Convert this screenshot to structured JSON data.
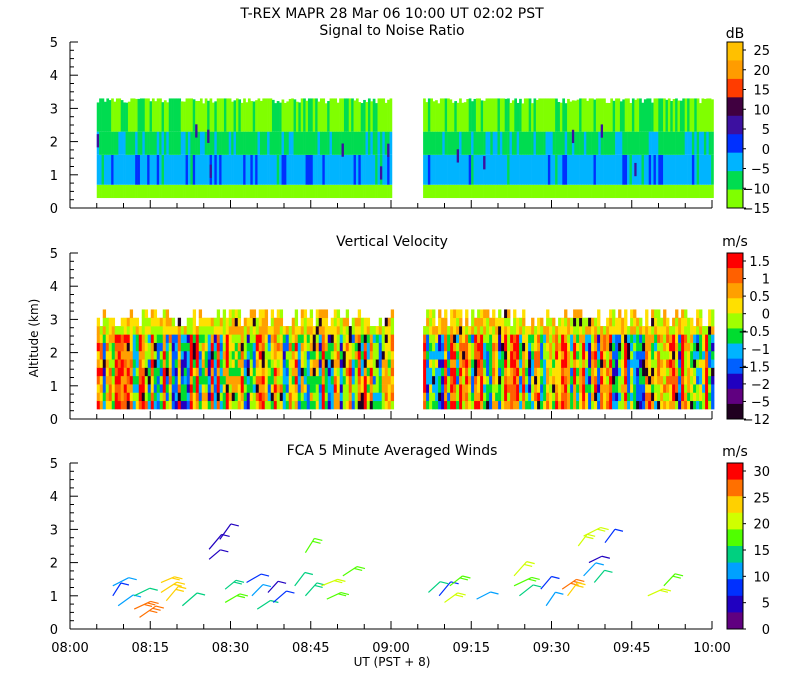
{
  "figure": {
    "title_line1": "T-REX   MAPR 28 Mar 06   10:00 UT   02:02   PST",
    "shared_x": {
      "label": "UT  (PST + 8)",
      "ticks": [
        "08:00",
        "08:15",
        "08:30",
        "08:45",
        "09:00",
        "09:15",
        "09:30",
        "09:45",
        "10:00"
      ],
      "range_minutes_ut": [
        480,
        600
      ]
    },
    "shared_y": {
      "label": "Altitude (km)",
      "range": [
        0,
        5
      ],
      "ticks": [
        "0",
        "1",
        "2",
        "3",
        "4",
        "5"
      ]
    },
    "data_gap_ut": [
      "09:00",
      "09:06"
    ]
  },
  "chart_data": [
    {
      "type": "heatmap",
      "title": "Signal to Noise Ratio",
      "ylabel": "Altitude (km)",
      "ylim": [
        0,
        5
      ],
      "colorbar": {
        "unit": "dB",
        "labels": [
          "25",
          "20",
          "15",
          "10",
          "5",
          "0",
          "−5",
          "−10",
          "−15"
        ],
        "colors": [
          "#ffc000",
          "#ff9c00",
          "#ff3c00",
          "#400040",
          "#3c10a0",
          "#0030ff",
          "#00b4ff",
          "#00dc50",
          "#80ff00"
        ]
      },
      "coverage": {
        "segments_ut": [
          [
            "08:05",
            "09:00"
          ],
          [
            "09:06",
            "10:00"
          ]
        ],
        "altitude_km": [
          0.3,
          3.4
        ]
      },
      "layers": [
        {
          "alt_km": [
            0.3,
            0.7
          ],
          "snr_db": -12
        },
        {
          "alt_km": [
            0.7,
            1.6
          ],
          "snr_db": -5
        },
        {
          "alt_km": [
            1.6,
            2.3
          ],
          "snr_db": -10
        },
        {
          "alt_km": [
            2.3,
            3.3
          ],
          "snr_db": -13
        }
      ]
    },
    {
      "type": "heatmap",
      "title": "Vertical Velocity",
      "ylabel": "Altitude (km)",
      "ylim": [
        0,
        5
      ],
      "colorbar": {
        "unit": "m/s",
        "labels": [
          "1.5",
          "1",
          "0.5",
          "0",
          "−0.5",
          "−1",
          "−1.5",
          "−2",
          "−5",
          "−12"
        ],
        "colors": [
          "#ff0000",
          "#ff6000",
          "#ffa000",
          "#ffe000",
          "#a0ff00",
          "#00dc30",
          "#00b4ff",
          "#0060ff",
          "#2000c0",
          "#600080",
          "#200020"
        ]
      },
      "coverage": {
        "segments_ut": [
          [
            "08:05",
            "09:00"
          ],
          [
            "09:06",
            "10:00"
          ]
        ],
        "altitude_km": [
          0.3,
          3.3
        ]
      }
    },
    {
      "type": "wind_barbs",
      "title": "FCA 5 Minute Averaged Winds",
      "ylabel": "Altitude (km)",
      "ylim": [
        0,
        5
      ],
      "colorbar": {
        "unit": "m/s",
        "labels": [
          "30",
          "25",
          "20",
          "15",
          "10",
          "5",
          "0"
        ],
        "colors": [
          "#ff0000",
          "#ff7000",
          "#ffd000",
          "#d0ff00",
          "#50ff00",
          "#00d080",
          "#00a0ff",
          "#0030ff",
          "#2000c0",
          "#600080"
        ]
      },
      "barbs": [
        {
          "t": "08:08",
          "alt": 1.0,
          "spd": 8
        },
        {
          "t": "08:08",
          "alt": 1.3,
          "spd": 9
        },
        {
          "t": "08:09",
          "alt": 0.7,
          "spd": 10
        },
        {
          "t": "08:12",
          "alt": 1.0,
          "spd": 12
        },
        {
          "t": "08:12",
          "alt": 0.6,
          "spd": 28
        },
        {
          "t": "08:13",
          "alt": 0.35,
          "spd": 27
        },
        {
          "t": "08:17",
          "alt": 1.4,
          "spd": 22
        },
        {
          "t": "08:17",
          "alt": 1.1,
          "spd": 24
        },
        {
          "t": "08:18",
          "alt": 0.85,
          "spd": 23
        },
        {
          "t": "08:21",
          "alt": 0.7,
          "spd": 14
        },
        {
          "t": "08:26",
          "alt": 2.4,
          "spd": 4
        },
        {
          "t": "08:26",
          "alt": 2.1,
          "spd": 3
        },
        {
          "t": "08:28",
          "alt": 2.7,
          "spd": 5
        },
        {
          "t": "08:29",
          "alt": 1.2,
          "spd": 15
        },
        {
          "t": "08:29",
          "alt": 0.8,
          "spd": 16
        },
        {
          "t": "08:33",
          "alt": 1.4,
          "spd": 7
        },
        {
          "t": "08:34",
          "alt": 1.0,
          "spd": 9
        },
        {
          "t": "08:35",
          "alt": 0.6,
          "spd": 13
        },
        {
          "t": "08:37",
          "alt": 1.1,
          "spd": 3
        },
        {
          "t": "08:38",
          "alt": 0.8,
          "spd": 8
        },
        {
          "t": "08:42",
          "alt": 1.3,
          "spd": 14
        },
        {
          "t": "08:44",
          "alt": 2.3,
          "spd": 16
        },
        {
          "t": "08:44",
          "alt": 1.0,
          "spd": 15
        },
        {
          "t": "08:47",
          "alt": 1.3,
          "spd": 20
        },
        {
          "t": "08:48",
          "alt": 0.9,
          "spd": 18
        },
        {
          "t": "08:51",
          "alt": 1.6,
          "spd": 17
        },
        {
          "t": "09:07",
          "alt": 1.1,
          "spd": 12
        },
        {
          "t": "09:09",
          "alt": 1.0,
          "spd": 6
        },
        {
          "t": "09:10",
          "alt": 0.8,
          "spd": 19
        },
        {
          "t": "09:11",
          "alt": 1.3,
          "spd": 16
        },
        {
          "t": "09:16",
          "alt": 0.9,
          "spd": 11
        },
        {
          "t": "09:23",
          "alt": 1.6,
          "spd": 20
        },
        {
          "t": "09:23",
          "alt": 1.3,
          "spd": 18
        },
        {
          "t": "09:24",
          "alt": 1.0,
          "spd": 14
        },
        {
          "t": "09:28",
          "alt": 1.2,
          "spd": 8
        },
        {
          "t": "09:29",
          "alt": 0.7,
          "spd": 11
        },
        {
          "t": "09:32",
          "alt": 1.2,
          "spd": 27
        },
        {
          "t": "09:33",
          "alt": 1.0,
          "spd": 24
        },
        {
          "t": "09:35",
          "alt": 2.5,
          "spd": 20
        },
        {
          "t": "09:36",
          "alt": 2.8,
          "spd": 19
        },
        {
          "t": "09:37",
          "alt": 2.0,
          "spd": 4
        },
        {
          "t": "09:36",
          "alt": 1.6,
          "spd": 10
        },
        {
          "t": "09:38",
          "alt": 1.4,
          "spd": 12
        },
        {
          "t": "09:40",
          "alt": 2.6,
          "spd": 6
        },
        {
          "t": "09:48",
          "alt": 1.0,
          "spd": 20
        },
        {
          "t": "09:51",
          "alt": 1.3,
          "spd": 17
        }
      ]
    }
  ]
}
